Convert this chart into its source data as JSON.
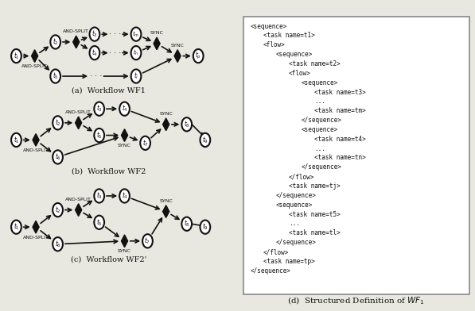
{
  "bg_color": "#e8e8e0",
  "box_color": "#ffffff",
  "node_color": "#ffffff",
  "diamond_color": "#111111",
  "edge_color": "#111111",
  "text_color": "#111111",
  "xml_lines": [
    "<sequence>",
    "        <task name=t1>",
    "        <flow>",
    "                <sequence>",
    "                        <task name=t2>",
    "                        <flow>",
    "                                <sequence>",
    "                                        <task name=t3>",
    "                                        ...",
    "                                        <task name=tm>",
    "                                </sequence>",
    "                                <sequence>",
    "                                        <task name=t4>",
    "                                        ...",
    "                                        <task name=tn>",
    "                                </sequence>",
    "                        </flow>",
    "                        <task name=tj>",
    "                </sequence>",
    "                <sequence>",
    "                        <task name=t5>",
    "                        ...",
    "                        <task name=tl>",
    "                </sequence>",
    "        </flow>",
    "        <task name=tp>",
    "</sequence>"
  ],
  "caption_d": "(d)  Structured Definition of $WF_1$"
}
